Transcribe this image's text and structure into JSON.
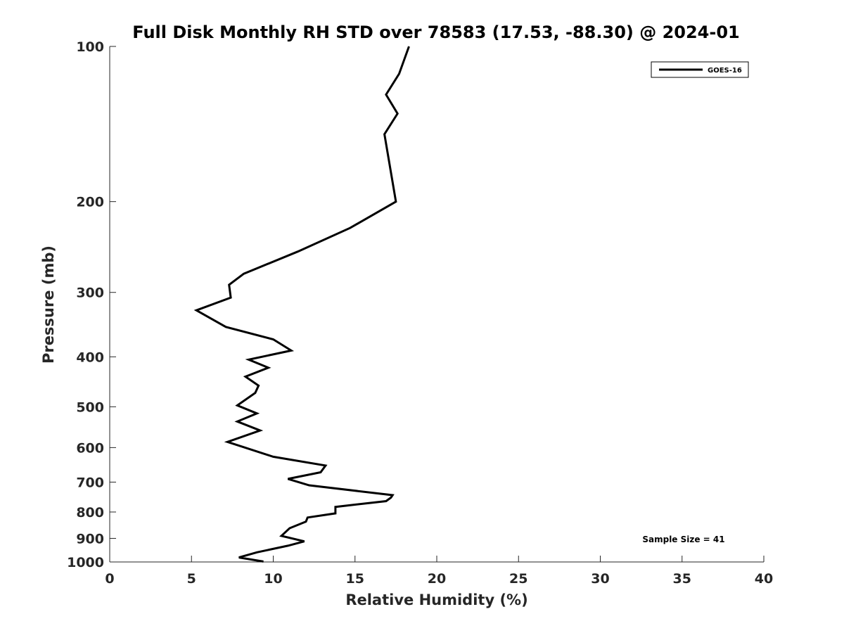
{
  "chart_data": {
    "type": "line",
    "title": "Full Disk Monthly RH STD over 78583 (17.53, -88.30) @ 2024-01",
    "xlabel": "Relative Humidity (%)",
    "ylabel": "Pressure (mb)",
    "xlim": [
      0,
      40
    ],
    "ylim": [
      100,
      1000
    ],
    "yscale": "log",
    "y_reversed": true,
    "grid": false,
    "legend_position": "top-right",
    "xticks": [
      0,
      5,
      10,
      15,
      20,
      25,
      30,
      35,
      40
    ],
    "xtick_labels": [
      "0",
      "5",
      "10",
      "15",
      "20",
      "25",
      "30",
      "35",
      "40"
    ],
    "yticks": [
      100,
      200,
      300,
      400,
      500,
      600,
      700,
      800,
      900,
      1000
    ],
    "ytick_labels": [
      "100",
      "200",
      "300",
      "400",
      "500",
      "600",
      "700",
      "800",
      "900",
      "1000"
    ],
    "annotation": "Sample Size = 41",
    "series": [
      {
        "name": "GOES-16",
        "color": "#000000",
        "x": [
          18.3,
          17.7,
          16.9,
          17.6,
          16.8,
          17.5,
          14.7,
          11.5,
          8.2,
          7.3,
          7.4,
          5.3,
          7.1,
          10.0,
          11.1,
          8.5,
          9.7,
          8.3,
          9.1,
          8.9,
          7.8,
          9.0,
          7.8,
          9.2,
          7.2,
          10.0,
          13.2,
          12.9,
          10.9,
          12.2,
          17.3,
          17.2,
          16.9,
          13.8,
          13.8,
          12.1,
          12.0,
          11.0,
          10.5,
          11.9,
          10.9,
          9.0,
          7.9,
          9.4
        ],
        "y": [
          100,
          113,
          124,
          135,
          148,
          200,
          225,
          250,
          276,
          290,
          307,
          325,
          350,
          370,
          389,
          405,
          420,
          437,
          455,
          470,
          497,
          515,
          534,
          556,
          585,
          625,
          650,
          670,
          690,
          710,
          742,
          750,
          762,
          782,
          805,
          820,
          835,
          860,
          890,
          912,
          930,
          958,
          980,
          998
        ]
      }
    ]
  }
}
